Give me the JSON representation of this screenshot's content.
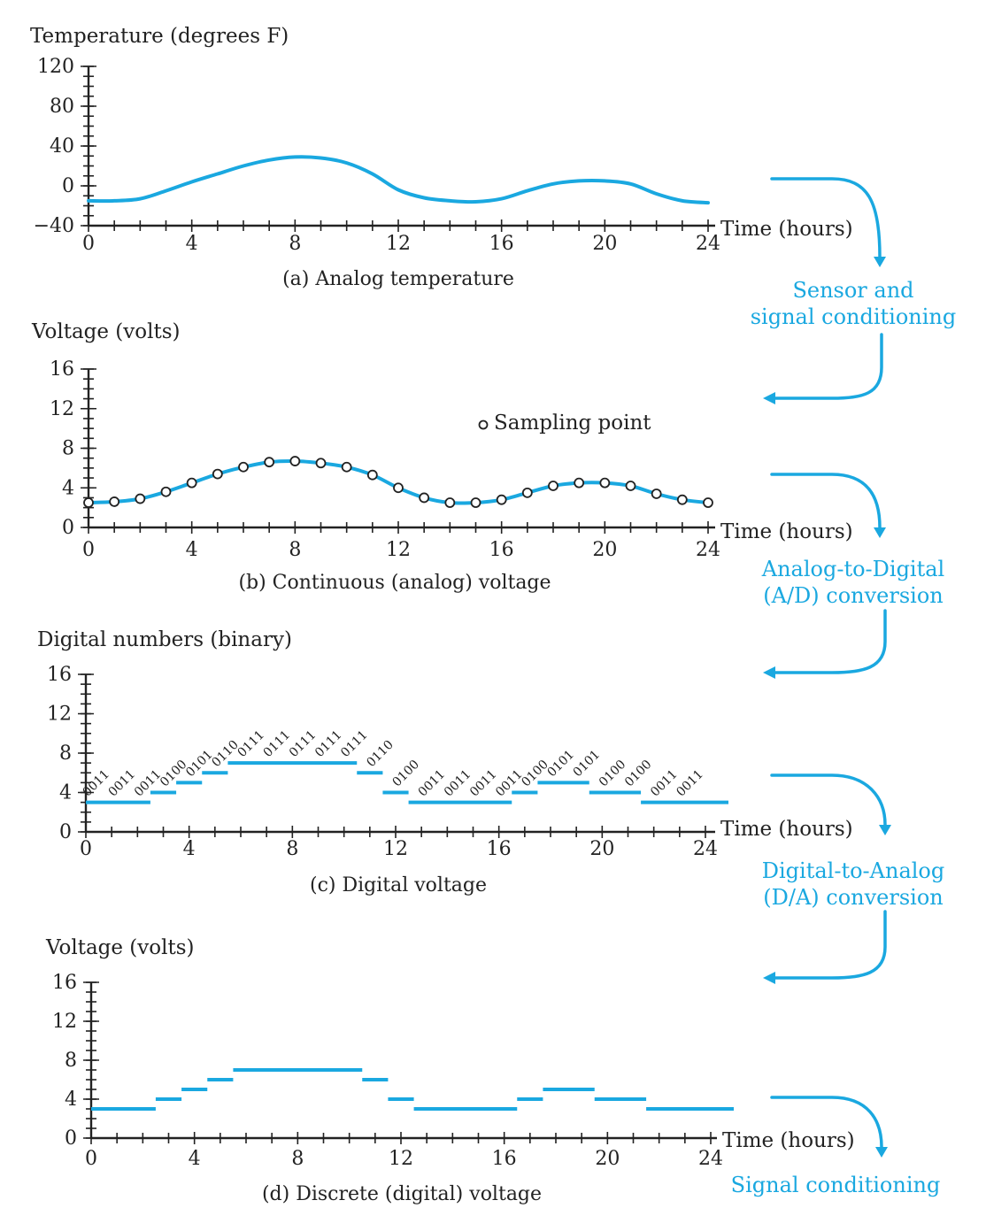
{
  "chart_data": [
    {
      "type": "line",
      "ylabel": "Temperature (degrees F)",
      "xlabel": "Time (hours)",
      "caption": "(a) Analog temperature",
      "xlim": [
        0,
        24
      ],
      "ylim": [
        -40,
        120
      ],
      "xticks": [
        0,
        4,
        8,
        12,
        16,
        20,
        24
      ],
      "yticks": [
        -40,
        0,
        40,
        80,
        120
      ],
      "x": [
        0,
        1,
        2,
        3,
        4,
        5,
        6,
        7,
        8,
        9,
        10,
        11,
        12,
        13,
        14,
        15,
        16,
        17,
        18,
        19,
        20,
        21,
        22,
        23,
        24
      ],
      "y": [
        -15,
        -15,
        -13,
        -5,
        4,
        12,
        20,
        26,
        29,
        28,
        23,
        12,
        -4,
        -12,
        -15,
        -16,
        -13,
        -5,
        2,
        5,
        5,
        2,
        -8,
        -15,
        -17
      ]
    },
    {
      "type": "scatter",
      "ylabel": "Voltage (volts)",
      "xlabel": "Time (hours)",
      "caption": "(b) Continuous (analog) voltage",
      "legend": "Sampling point",
      "xlim": [
        0,
        24
      ],
      "ylim": [
        0,
        16
      ],
      "xticks": [
        0,
        4,
        8,
        12,
        16,
        20,
        24
      ],
      "yticks": [
        0,
        4,
        8,
        12,
        16
      ],
      "curve": {
        "x": [
          0,
          1,
          2,
          3,
          4,
          5,
          6,
          7,
          8,
          9,
          10,
          11,
          12,
          13,
          14,
          15,
          16,
          17,
          18,
          19,
          20,
          21,
          22,
          23,
          24
        ],
        "y": [
          2.5,
          2.6,
          2.9,
          3.6,
          4.5,
          5.4,
          6.1,
          6.6,
          6.7,
          6.5,
          6.1,
          5.3,
          4.0,
          3.0,
          2.5,
          2.5,
          2.8,
          3.5,
          4.2,
          4.5,
          4.5,
          4.2,
          3.4,
          2.8,
          2.5
        ]
      },
      "sample_x": [
        0,
        1,
        2,
        3,
        4,
        5,
        6,
        7,
        8,
        9,
        10,
        11,
        12,
        13,
        14,
        15,
        16,
        17,
        18,
        19,
        20,
        21,
        22,
        23,
        24
      ],
      "sample_y": [
        2.5,
        2.6,
        2.9,
        3.6,
        4.5,
        5.4,
        6.1,
        6.6,
        6.7,
        6.5,
        6.1,
        5.3,
        4.0,
        3.0,
        2.5,
        2.5,
        2.8,
        3.5,
        4.2,
        4.5,
        4.5,
        4.2,
        3.4,
        2.8,
        2.5
      ]
    },
    {
      "type": "step",
      "ylabel": "Digital numbers (binary)",
      "xlabel": "Time (hours)",
      "caption": "(c) Digital voltage",
      "xlim": [
        0,
        24
      ],
      "ylim": [
        0,
        16
      ],
      "xticks": [
        0,
        4,
        8,
        12,
        16,
        20,
        24
      ],
      "yticks": [
        0,
        4,
        8,
        12,
        16
      ],
      "levels": [
        3,
        3,
        3,
        4,
        5,
        6,
        7,
        7,
        7,
        7,
        7,
        6,
        4,
        3,
        3,
        3,
        3,
        4,
        5,
        5,
        4,
        4,
        3,
        3,
        3
      ],
      "codes": [
        "0011",
        "0011",
        "0011",
        "0100",
        "0101",
        "0110",
        "0111",
        "0111",
        "0111",
        "0111",
        "0111",
        "0110",
        "0100",
        "0011",
        "0011",
        "0011",
        "0011",
        "0100",
        "0101",
        "0101",
        "0100",
        "0100",
        "0011",
        "0011"
      ]
    },
    {
      "type": "step",
      "ylabel": "Voltage (volts)",
      "xlabel": "Time (hours)",
      "caption": "(d) Discrete (digital) voltage",
      "xlim": [
        0,
        24
      ],
      "ylim": [
        0,
        16
      ],
      "xticks": [
        0,
        4,
        8,
        12,
        16,
        20,
        24
      ],
      "yticks": [
        0,
        4,
        8,
        12,
        16
      ],
      "levels": [
        3,
        3,
        3,
        4,
        5,
        6,
        7,
        7,
        7,
        7,
        7,
        6,
        4,
        3,
        3,
        3,
        3,
        4,
        5,
        5,
        4,
        4,
        3,
        3,
        3
      ]
    }
  ],
  "flow": {
    "step1": [
      "Sensor and",
      "signal conditioning"
    ],
    "step2": [
      "Analog-to-Digital",
      "(A/D) conversion"
    ],
    "step3": [
      "Digital-to-Analog",
      "(D/A) conversion"
    ],
    "step4": [
      "Signal conditioning"
    ],
    "accent": "#1aa8e0"
  }
}
